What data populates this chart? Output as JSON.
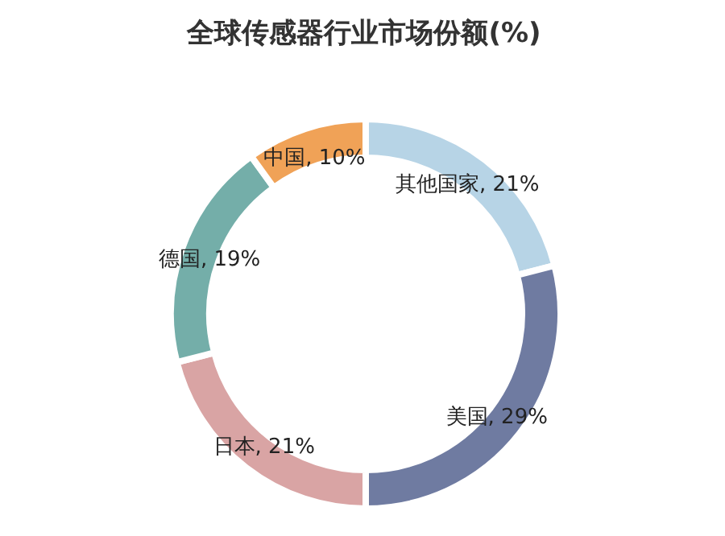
{
  "chart_data": {
    "type": "donut",
    "title": "全球传感器行业市场份额(%)",
    "categories": [
      "其他国家",
      "美国",
      "日本",
      "德国",
      "中国"
    ],
    "values": [
      21,
      29,
      21,
      19,
      10
    ],
    "value_labels": [
      ", 21%",
      ", 29%",
      ", 21%",
      ", 19%",
      ", 10%"
    ],
    "colors": [
      "#b7d4e6",
      "#6f7ba1",
      "#d9a4a4",
      "#74aea9",
      "#f0a257"
    ],
    "legend": false
  }
}
